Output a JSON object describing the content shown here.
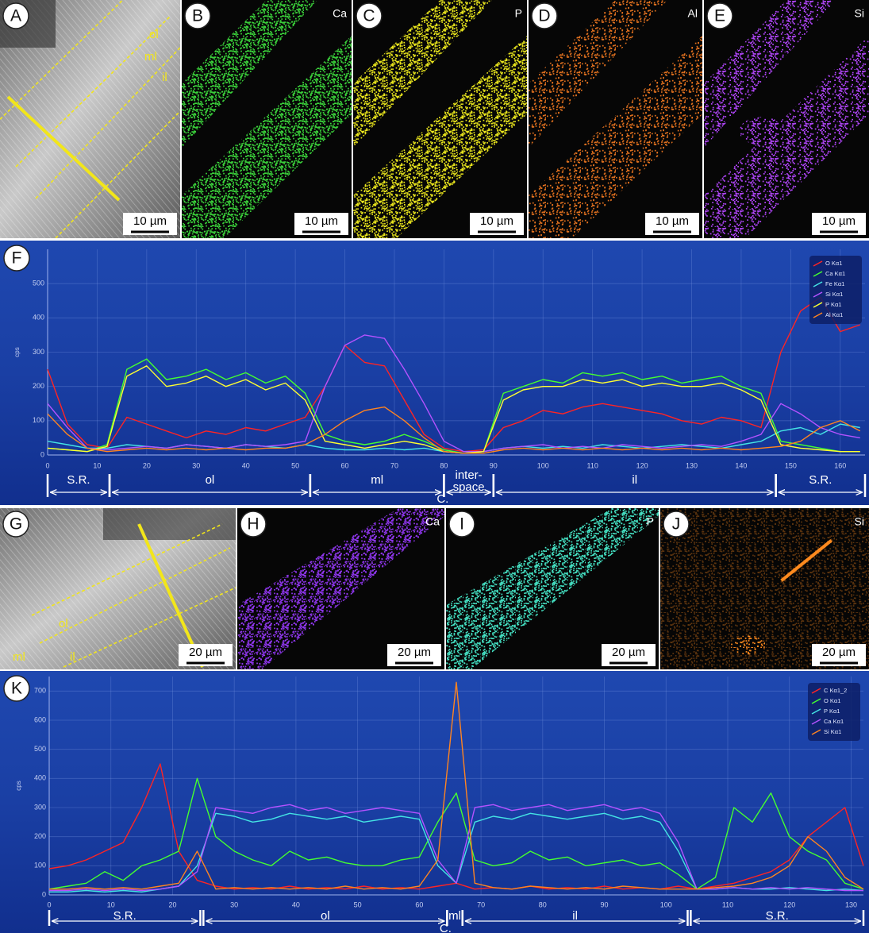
{
  "panels": [
    {
      "label": "A",
      "scale": "10 µm",
      "zones": [
        "ol",
        "ml",
        "il"
      ]
    },
    {
      "label": "B",
      "element": "Ca",
      "scale": "10 µm",
      "color": "#3ad23a"
    },
    {
      "label": "C",
      "element": "P",
      "scale": "10 µm",
      "color": "#e8e41c"
    },
    {
      "label": "D",
      "element": "Al",
      "scale": "10 µm",
      "color": "#e0701e"
    },
    {
      "label": "E",
      "element": "Si",
      "scale": "10 µm",
      "color": "#b446ff"
    },
    {
      "label": "G",
      "scale": "20 µm",
      "zones": [
        "ol",
        "ml",
        "il"
      ]
    },
    {
      "label": "H",
      "element": "Ca",
      "scale": "20 µm",
      "color": "#9036f0"
    },
    {
      "label": "I",
      "element": "P",
      "scale": "20 µm",
      "color": "#44e2c4"
    },
    {
      "label": "J",
      "element": "Si",
      "scale": "20 µm",
      "color": "#ff8a1e"
    }
  ],
  "chart_data": [
    {
      "type": "line",
      "panel_label": "F",
      "ylabel": "cps",
      "grid": true,
      "legend": "upper right",
      "xlim": [
        0,
        165
      ],
      "ylim": [
        0,
        600
      ],
      "xticks": [
        0,
        10,
        20,
        30,
        40,
        50,
        60,
        70,
        80,
        90,
        100,
        110,
        120,
        130,
        140,
        150,
        160
      ],
      "yticks": [
        0,
        100,
        200,
        300,
        400,
        500
      ],
      "x": [
        0,
        4,
        8,
        12,
        16,
        20,
        24,
        28,
        32,
        36,
        40,
        44,
        48,
        52,
        56,
        60,
        64,
        68,
        72,
        76,
        80,
        84,
        88,
        92,
        96,
        100,
        104,
        108,
        112,
        116,
        120,
        124,
        128,
        132,
        136,
        140,
        144,
        148,
        152,
        156,
        160,
        164
      ],
      "series": [
        {
          "name": "O Kα1",
          "color": "#ff2424",
          "values": [
            250,
            90,
            30,
            20,
            110,
            90,
            70,
            50,
            70,
            60,
            80,
            70,
            90,
            110,
            200,
            320,
            270,
            260,
            160,
            60,
            20,
            10,
            15,
            80,
            100,
            130,
            120,
            140,
            150,
            140,
            130,
            120,
            100,
            90,
            110,
            100,
            80,
            300,
            420,
            460,
            360,
            380
          ]
        },
        {
          "name": "Ca Kα1",
          "color": "#44ff30",
          "values": [
            20,
            15,
            10,
            30,
            250,
            280,
            220,
            230,
            250,
            220,
            240,
            210,
            230,
            180,
            60,
            40,
            30,
            40,
            60,
            40,
            15,
            5,
            10,
            180,
            200,
            220,
            210,
            240,
            230,
            240,
            220,
            230,
            210,
            220,
            230,
            200,
            180,
            40,
            30,
            20,
            10,
            10
          ]
        },
        {
          "name": "Fe Kα1",
          "color": "#44e4e4",
          "values": [
            40,
            30,
            20,
            20,
            30,
            25,
            20,
            30,
            25,
            20,
            30,
            25,
            20,
            30,
            20,
            15,
            15,
            20,
            15,
            20,
            10,
            5,
            10,
            20,
            25,
            20,
            25,
            20,
            30,
            25,
            20,
            25,
            30,
            25,
            20,
            30,
            40,
            70,
            80,
            60,
            90,
            80
          ]
        },
        {
          "name": "Si Kα1",
          "color": "#b452ff",
          "values": [
            150,
            80,
            20,
            15,
            20,
            25,
            20,
            30,
            25,
            20,
            30,
            25,
            30,
            40,
            200,
            320,
            350,
            340,
            250,
            150,
            40,
            10,
            10,
            20,
            25,
            30,
            20,
            25,
            20,
            30,
            25,
            20,
            25,
            30,
            25,
            40,
            60,
            150,
            120,
            80,
            60,
            50
          ]
        },
        {
          "name": "P Kα1",
          "color": "#ffff30",
          "values": [
            20,
            15,
            10,
            25,
            230,
            260,
            200,
            210,
            230,
            200,
            220,
            190,
            210,
            160,
            40,
            30,
            20,
            30,
            40,
            30,
            10,
            5,
            10,
            160,
            190,
            200,
            200,
            220,
            210,
            220,
            200,
            210,
            200,
            200,
            210,
            190,
            160,
            30,
            20,
            15,
            10,
            10
          ]
        },
        {
          "name": "Al Kα1",
          "color": "#ff8420",
          "values": [
            120,
            60,
            20,
            10,
            15,
            20,
            15,
            20,
            15,
            20,
            15,
            20,
            20,
            30,
            60,
            100,
            130,
            140,
            100,
            50,
            10,
            5,
            5,
            15,
            20,
            15,
            20,
            15,
            20,
            15,
            20,
            15,
            20,
            15,
            20,
            15,
            20,
            25,
            40,
            80,
            100,
            70
          ]
        }
      ],
      "regions": [
        {
          "label": "S.R.",
          "start": 0,
          "end": 12.5
        },
        {
          "label": "ol",
          "start": 12.5,
          "end": 53
        },
        {
          "label": "ml",
          "start": 53,
          "end": 80
        },
        {
          "label": [
            "inter-",
            "space"
          ],
          "start": 80,
          "end": 90
        },
        {
          "label": "il",
          "start": 90,
          "end": 147
        },
        {
          "label": "S.R.",
          "start": 147,
          "end": 165
        }
      ],
      "span": {
        "label": "C.",
        "start": 12.5,
        "end": 147
      }
    },
    {
      "type": "line",
      "panel_label": "K",
      "ylabel": "cps",
      "grid": true,
      "legend": "upper right",
      "xlim": [
        0,
        132
      ],
      "ylim": [
        0,
        750
      ],
      "xticks": [
        0,
        10,
        20,
        30,
        40,
        50,
        60,
        70,
        80,
        90,
        100,
        110,
        120,
        130
      ],
      "yticks": [
        0,
        100,
        200,
        300,
        400,
        500,
        600,
        700
      ],
      "x": [
        0,
        3,
        6,
        9,
        12,
        15,
        18,
        21,
        24,
        27,
        30,
        33,
        36,
        39,
        42,
        45,
        48,
        51,
        54,
        57,
        60,
        63,
        66,
        69,
        72,
        75,
        78,
        81,
        84,
        87,
        90,
        93,
        96,
        99,
        102,
        105,
        108,
        111,
        114,
        117,
        120,
        123,
        126,
        129,
        132
      ],
      "series": [
        {
          "name": "C Kα1_2",
          "color": "#ff2424",
          "values": [
            90,
            100,
            120,
            150,
            180,
            300,
            450,
            150,
            50,
            30,
            20,
            25,
            20,
            30,
            20,
            25,
            20,
            30,
            20,
            25,
            20,
            30,
            40,
            20,
            25,
            20,
            30,
            20,
            25,
            20,
            30,
            20,
            25,
            20,
            30,
            20,
            30,
            40,
            60,
            80,
            120,
            200,
            250,
            300,
            100
          ]
        },
        {
          "name": "O Kα1",
          "color": "#44ff30",
          "values": [
            20,
            30,
            40,
            80,
            50,
            100,
            120,
            150,
            400,
            200,
            150,
            120,
            100,
            150,
            120,
            130,
            110,
            100,
            100,
            120,
            130,
            250,
            350,
            120,
            100,
            110,
            150,
            120,
            130,
            100,
            110,
            120,
            100,
            110,
            70,
            20,
            60,
            300,
            250,
            350,
            200,
            150,
            120,
            40,
            20
          ]
        },
        {
          "name": "P Kα1",
          "color": "#44e4e4",
          "values": [
            10,
            10,
            15,
            10,
            15,
            10,
            20,
            30,
            100,
            280,
            270,
            250,
            260,
            280,
            270,
            260,
            270,
            250,
            260,
            270,
            260,
            100,
            40,
            250,
            270,
            260,
            280,
            270,
            260,
            270,
            280,
            260,
            270,
            250,
            150,
            20,
            20,
            25,
            20,
            20,
            25,
            20,
            15,
            20,
            15
          ]
        },
        {
          "name": "Ca Kα1",
          "color": "#b452ff",
          "values": [
            15,
            15,
            20,
            15,
            20,
            15,
            20,
            30,
            80,
            300,
            290,
            280,
            300,
            310,
            290,
            300,
            280,
            290,
            300,
            290,
            280,
            120,
            40,
            300,
            310,
            290,
            300,
            310,
            290,
            300,
            310,
            290,
            300,
            280,
            180,
            20,
            20,
            25,
            20,
            25,
            20,
            25,
            20,
            15,
            15
          ]
        },
        {
          "name": "Si Kα1",
          "color": "#ff8420",
          "values": [
            20,
            20,
            25,
            20,
            25,
            20,
            30,
            40,
            150,
            20,
            25,
            20,
            25,
            20,
            25,
            20,
            30,
            20,
            25,
            20,
            30,
            120,
            730,
            40,
            25,
            20,
            30,
            25,
            20,
            25,
            20,
            30,
            25,
            20,
            20,
            20,
            25,
            30,
            40,
            60,
            100,
            200,
            150,
            60,
            20
          ]
        }
      ],
      "regions": [
        {
          "label": "S.R.",
          "start": 0,
          "end": 24.5
        },
        {
          "label": "ol",
          "start": 25,
          "end": 64.5
        },
        {
          "label": "ml",
          "start": 64.5,
          "end": 67
        },
        {
          "label": "il",
          "start": 67,
          "end": 103.5
        },
        {
          "label": "S.R.",
          "start": 104,
          "end": 132
        }
      ],
      "span": {
        "label": "C.",
        "start": 25,
        "end": 103.5
      }
    }
  ]
}
